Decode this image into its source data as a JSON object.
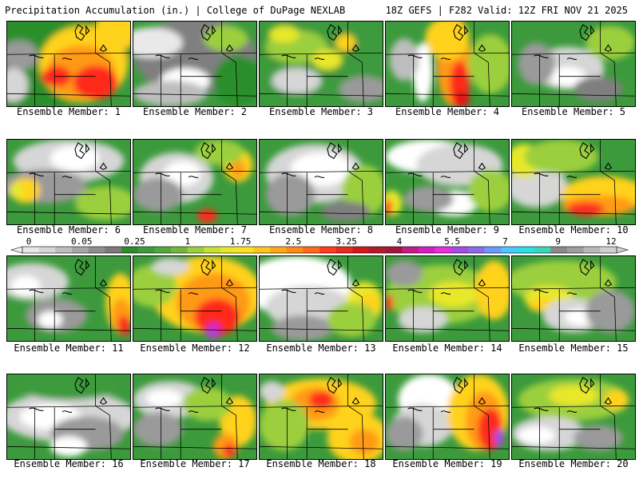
{
  "header": {
    "title": "Precipitation Accumulation (in.) | College of DuPage NEXLAB",
    "run_info": "18Z GEFS | F282 Valid: 12Z FRI NOV 21 2025"
  },
  "member_label_prefix": "Ensemble Member: ",
  "members": [
    {
      "number": "1",
      "label": "Ensemble Member: 1",
      "blobs": [
        [
          "#2a8f2a",
          0,
          0,
          1.1,
          1.1
        ],
        [
          "#ffd21f",
          0.62,
          0.5,
          0.36,
          0.45
        ],
        [
          "#ff9a18",
          0.6,
          0.6,
          0.28,
          0.32
        ],
        [
          "#ff2c1e",
          0.72,
          0.72,
          0.18,
          0.2
        ],
        [
          "#ff2c1e",
          0.4,
          0.65,
          0.12,
          0.12
        ],
        [
          "#ffd21f",
          0.9,
          0.08,
          0.18,
          0.25
        ],
        [
          "#9a9a9a",
          0.1,
          0.4,
          0.15,
          0.18
        ],
        [
          "#d6d6d6",
          0.05,
          0.75,
          0.12,
          0.2
        ]
      ]
    },
    {
      "number": "2",
      "label": "Ensemble Member: 2",
      "blobs": [
        [
          "#7f7f7f",
          0.5,
          0.4,
          0.5,
          0.45
        ],
        [
          "#e9e9e9",
          0.15,
          0.25,
          0.25,
          0.18
        ],
        [
          "#ffffff",
          0.42,
          0.7,
          0.2,
          0.15
        ],
        [
          "#bdbdbd",
          0.3,
          0.85,
          0.3,
          0.15
        ],
        [
          "#2a8f2a",
          0.85,
          0.7,
          0.2,
          0.3
        ],
        [
          "#9ccf3c",
          0.75,
          0.2,
          0.18,
          0.15
        ]
      ]
    },
    {
      "number": "3",
      "label": "Ensemble Member: 3",
      "blobs": [
        [
          "#3c9a3c",
          0.5,
          0.5,
          0.6,
          0.6
        ],
        [
          "#9ccf3c",
          0.3,
          0.3,
          0.25,
          0.2
        ],
        [
          "#e8e82a",
          0.55,
          0.45,
          0.12,
          0.12
        ],
        [
          "#e8e82a",
          0.2,
          0.15,
          0.12,
          0.1
        ],
        [
          "#d6d6d6",
          0.3,
          0.7,
          0.2,
          0.15
        ],
        [
          "#9a9a9a",
          0.85,
          0.8,
          0.2,
          0.15
        ],
        [
          "#ffd21f",
          0.7,
          0.25,
          0.08,
          0.1
        ]
      ]
    },
    {
      "number": "4",
      "label": "Ensemble Member: 4",
      "blobs": [
        [
          "#ff9a18",
          0.55,
          0.45,
          0.14,
          0.55
        ],
        [
          "#ff2c1e",
          0.6,
          0.75,
          0.08,
          0.28
        ],
        [
          "#e01212",
          0.62,
          0.92,
          0.06,
          0.1
        ],
        [
          "#ffd21f",
          0.5,
          0.2,
          0.18,
          0.25
        ],
        [
          "#ffffff",
          0.3,
          0.6,
          0.08,
          0.35
        ],
        [
          "#bdbdbd",
          0.15,
          0.45,
          0.12,
          0.25
        ],
        [
          "#9ccf3c",
          0.85,
          0.5,
          0.18,
          0.35
        ]
      ]
    },
    {
      "number": "5",
      "label": "Ensemble Member: 5",
      "blobs": [
        [
          "#d6d6d6",
          0.45,
          0.55,
          0.3,
          0.25
        ],
        [
          "#ffffff",
          0.45,
          0.65,
          0.15,
          0.12
        ],
        [
          "#9a9a9a",
          0.2,
          0.5,
          0.15,
          0.25
        ],
        [
          "#9ccf3c",
          0.8,
          0.25,
          0.2,
          0.2
        ],
        [
          "#7f7f7f",
          0.7,
          0.8,
          0.2,
          0.15
        ]
      ]
    },
    {
      "number": "6",
      "label": "Ensemble Member: 6",
      "blobs": [
        [
          "#d6d6d6",
          0.5,
          0.25,
          0.45,
          0.25
        ],
        [
          "#ffffff",
          0.55,
          0.22,
          0.2,
          0.15
        ],
        [
          "#9a9a9a",
          0.3,
          0.55,
          0.35,
          0.2
        ],
        [
          "#ffd21f",
          0.15,
          0.6,
          0.12,
          0.15
        ],
        [
          "#9ccf3c",
          0.8,
          0.75,
          0.25,
          0.2
        ],
        [
          "#e8e82a",
          0.08,
          0.6,
          0.06,
          0.1
        ]
      ]
    },
    {
      "number": "7",
      "label": "Ensemble Member: 7",
      "blobs": [
        [
          "#d6d6d6",
          0.35,
          0.45,
          0.3,
          0.3
        ],
        [
          "#ffffff",
          0.4,
          0.4,
          0.15,
          0.15
        ],
        [
          "#9a9a9a",
          0.2,
          0.65,
          0.2,
          0.2
        ],
        [
          "#ffd21f",
          0.85,
          0.3,
          0.12,
          0.2
        ],
        [
          "#ff9a18",
          0.85,
          0.35,
          0.06,
          0.1
        ],
        [
          "#ff2c1e",
          0.6,
          0.9,
          0.08,
          0.08
        ],
        [
          "#9ccf3c",
          0.7,
          0.15,
          0.2,
          0.15
        ]
      ]
    },
    {
      "number": "8",
      "label": "Ensemble Member: 8",
      "blobs": [
        [
          "#d6d6d6",
          0.45,
          0.4,
          0.4,
          0.35
        ],
        [
          "#ffffff",
          0.5,
          0.35,
          0.25,
          0.2
        ],
        [
          "#9a9a9a",
          0.25,
          0.65,
          0.2,
          0.25
        ],
        [
          "#9ccf3c",
          0.85,
          0.6,
          0.18,
          0.3
        ],
        [
          "#7f7f7f",
          0.7,
          0.85,
          0.2,
          0.12
        ]
      ]
    },
    {
      "number": "9",
      "label": "Ensemble Member: 9",
      "blobs": [
        [
          "#ffffff",
          0.35,
          0.2,
          0.35,
          0.2
        ],
        [
          "#d6d6d6",
          0.6,
          0.3,
          0.35,
          0.25
        ],
        [
          "#ffffff",
          0.55,
          0.75,
          0.2,
          0.15
        ],
        [
          "#9a9a9a",
          0.35,
          0.7,
          0.2,
          0.15
        ],
        [
          "#e8e82a",
          0.05,
          0.75,
          0.08,
          0.15
        ],
        [
          "#ff2c1e",
          0.02,
          0.8,
          0.03,
          0.1
        ],
        [
          "#9ccf3c",
          0.85,
          0.6,
          0.18,
          0.25
        ]
      ]
    },
    {
      "number": "10",
      "label": "Ensemble Member: 10",
      "blobs": [
        [
          "#d6d6d6",
          0.2,
          0.55,
          0.25,
          0.25
        ],
        [
          "#ffd21f",
          0.75,
          0.65,
          0.35,
          0.22
        ],
        [
          "#ff9a18",
          0.7,
          0.78,
          0.3,
          0.12
        ],
        [
          "#ff2c1e",
          0.6,
          0.82,
          0.15,
          0.08
        ],
        [
          "#e8e82a",
          0.1,
          0.25,
          0.15,
          0.2
        ],
        [
          "#9ccf3c",
          0.4,
          0.2,
          0.3,
          0.2
        ]
      ]
    },
    {
      "number": "11",
      "label": "Ensemble Member: 11",
      "blobs": [
        [
          "#d6d6d6",
          0.2,
          0.3,
          0.3,
          0.22
        ],
        [
          "#ffffff",
          0.15,
          0.35,
          0.12,
          0.12
        ],
        [
          "#9a9a9a",
          0.4,
          0.7,
          0.25,
          0.2
        ],
        [
          "#ffffff",
          0.35,
          0.75,
          0.1,
          0.1
        ],
        [
          "#ffd21f",
          0.92,
          0.55,
          0.12,
          0.35
        ],
        [
          "#ff9a18",
          0.93,
          0.7,
          0.08,
          0.2
        ],
        [
          "#ff2c1e",
          0.95,
          0.82,
          0.05,
          0.12
        ]
      ]
    },
    {
      "number": "12",
      "label": "Ensemble Member: 12",
      "blobs": [
        [
          "#ffd21f",
          0.6,
          0.45,
          0.45,
          0.45
        ],
        [
          "#ff9a18",
          0.65,
          0.55,
          0.3,
          0.35
        ],
        [
          "#ff2c1e",
          0.68,
          0.72,
          0.18,
          0.22
        ],
        [
          "#d61fc2",
          0.65,
          0.88,
          0.06,
          0.1
        ],
        [
          "#a64ce6",
          0.64,
          0.9,
          0.03,
          0.06
        ],
        [
          "#9ccf3c",
          0.15,
          0.35,
          0.2,
          0.25
        ],
        [
          "#d6d6d6",
          0.3,
          0.12,
          0.15,
          0.1
        ]
      ]
    },
    {
      "number": "13",
      "label": "Ensemble Member: 13",
      "blobs": [
        [
          "#ffffff",
          0.3,
          0.35,
          0.45,
          0.35
        ],
        [
          "#d6d6d6",
          0.4,
          0.6,
          0.35,
          0.25
        ],
        [
          "#9a9a9a",
          0.35,
          0.85,
          0.25,
          0.15
        ],
        [
          "#e8e82a",
          0.85,
          0.55,
          0.15,
          0.25
        ],
        [
          "#ffd21f",
          0.9,
          0.55,
          0.08,
          0.12
        ],
        [
          "#9ccf3c",
          0.75,
          0.75,
          0.2,
          0.2
        ]
      ]
    },
    {
      "number": "14",
      "label": "Ensemble Member: 14",
      "blobs": [
        [
          "#9ccf3c",
          0.45,
          0.45,
          0.45,
          0.35
        ],
        [
          "#e8e82a",
          0.55,
          0.45,
          0.2,
          0.15
        ],
        [
          "#ffd21f",
          0.88,
          0.4,
          0.15,
          0.35
        ],
        [
          "#d6d6d6",
          0.3,
          0.75,
          0.2,
          0.15
        ],
        [
          "#9a9a9a",
          0.15,
          0.2,
          0.15,
          0.15
        ],
        [
          "#ff2c1e",
          0.03,
          0.55,
          0.03,
          0.1
        ]
      ]
    },
    {
      "number": "15",
      "label": "Ensemble Member: 15",
      "blobs": [
        [
          "#9ccf3c",
          0.4,
          0.3,
          0.45,
          0.25
        ],
        [
          "#e8e82a",
          0.3,
          0.5,
          0.2,
          0.15
        ],
        [
          "#ffd21f",
          0.25,
          0.58,
          0.12,
          0.08
        ],
        [
          "#d6d6d6",
          0.5,
          0.7,
          0.25,
          0.2
        ],
        [
          "#ffffff",
          0.55,
          0.72,
          0.12,
          0.1
        ],
        [
          "#9a9a9a",
          0.8,
          0.65,
          0.2,
          0.25
        ]
      ]
    },
    {
      "number": "16",
      "label": "Ensemble Member: 16",
      "blobs": [
        [
          "#d6d6d6",
          0.5,
          0.5,
          0.55,
          0.3
        ],
        [
          "#ffffff",
          0.35,
          0.5,
          0.25,
          0.15
        ],
        [
          "#9a9a9a",
          0.65,
          0.7,
          0.3,
          0.2
        ],
        [
          "#ffffff",
          0.5,
          0.85,
          0.15,
          0.12
        ],
        [
          "#3c9a3c",
          0.5,
          0.15,
          0.4,
          0.15
        ]
      ]
    },
    {
      "number": "17",
      "label": "Ensemble Member: 17",
      "blobs": [
        [
          "#d6d6d6",
          0.3,
          0.3,
          0.3,
          0.22
        ],
        [
          "#ffffff",
          0.25,
          0.28,
          0.15,
          0.1
        ],
        [
          "#9a9a9a",
          0.2,
          0.65,
          0.2,
          0.2
        ],
        [
          "#ffd21f",
          0.85,
          0.55,
          0.15,
          0.3
        ],
        [
          "#ff9a18",
          0.75,
          0.85,
          0.1,
          0.15
        ],
        [
          "#ff2c1e",
          0.78,
          0.9,
          0.05,
          0.08
        ],
        [
          "#9ccf3c",
          0.6,
          0.35,
          0.2,
          0.2
        ]
      ]
    },
    {
      "number": "18",
      "label": "Ensemble Member: 18",
      "blobs": [
        [
          "#ffd21f",
          0.5,
          0.35,
          0.45,
          0.3
        ],
        [
          "#ff9a18",
          0.45,
          0.35,
          0.2,
          0.2
        ],
        [
          "#ff2c1e",
          0.5,
          0.3,
          0.1,
          0.1
        ],
        [
          "#ffd21f",
          0.8,
          0.75,
          0.25,
          0.3
        ],
        [
          "#ff9a18",
          0.85,
          0.8,
          0.12,
          0.15
        ],
        [
          "#9ccf3c",
          0.2,
          0.6,
          0.2,
          0.3
        ],
        [
          "#d6d6d6",
          0.1,
          0.2,
          0.1,
          0.12
        ]
      ]
    },
    {
      "number": "19",
      "label": "Ensemble Member: 19",
      "blobs": [
        [
          "#ffffff",
          0.35,
          0.3,
          0.25,
          0.3
        ],
        [
          "#d6d6d6",
          0.3,
          0.6,
          0.25,
          0.25
        ],
        [
          "#9a9a9a",
          0.15,
          0.7,
          0.15,
          0.2
        ],
        [
          "#ffd21f",
          0.75,
          0.45,
          0.25,
          0.45
        ],
        [
          "#ff9a18",
          0.8,
          0.55,
          0.15,
          0.35
        ],
        [
          "#ff2c1e",
          0.85,
          0.65,
          0.1,
          0.25
        ],
        [
          "#a64ce6",
          0.92,
          0.75,
          0.04,
          0.1
        ]
      ]
    },
    {
      "number": "20",
      "label": "Ensemble Member: 20",
      "blobs": [
        [
          "#9ccf3c",
          0.5,
          0.3,
          0.45,
          0.25
        ],
        [
          "#e8e82a",
          0.5,
          0.25,
          0.2,
          0.12
        ],
        [
          "#d6d6d6",
          0.3,
          0.7,
          0.3,
          0.2
        ],
        [
          "#ffffff",
          0.2,
          0.72,
          0.15,
          0.1
        ],
        [
          "#9a9a9a",
          0.7,
          0.75,
          0.2,
          0.15
        ],
        [
          "#ffd21f",
          0.85,
          0.3,
          0.1,
          0.12
        ]
      ]
    }
  ],
  "colorbar": {
    "labels": [
      "0",
      "0.05",
      "0.25",
      "1",
      "1.75",
      "2.5",
      "3.25",
      "4",
      "5.5",
      "7",
      "9",
      "12"
    ],
    "colors": [
      "#e8e8e8",
      "#d6d6d6",
      "#bdbdbd",
      "#a6a6a6",
      "#8e8e8e",
      "#7a7a7a",
      "#2e8b2e",
      "#3c9a3c",
      "#52a83a",
      "#6fb83a",
      "#9ccf3c",
      "#c8e02e",
      "#e8e82a",
      "#ffe01f",
      "#ffc41f",
      "#ffa818",
      "#ff8a18",
      "#ff6a18",
      "#ff3c1e",
      "#e82a1e",
      "#d01a1a",
      "#b01a2a",
      "#a0163c",
      "#c01c8c",
      "#d61fc2",
      "#e630e0",
      "#a64ce6",
      "#8a6ce6",
      "#6a9aff",
      "#4ac8ff",
      "#2ae0e6",
      "#3ad6b8",
      "#8a8a8a",
      "#9e9e9e",
      "#b8b8b8",
      "#d0d0d0"
    ]
  }
}
